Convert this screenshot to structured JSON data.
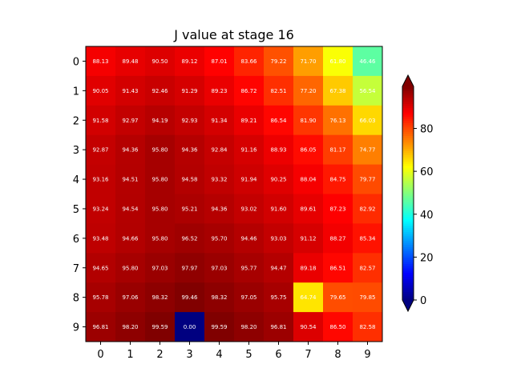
{
  "chart_data": {
    "type": "heatmap",
    "title": "J value at stage 16",
    "xlabel": "",
    "ylabel": "",
    "x_ticks": [
      "0",
      "1",
      "2",
      "3",
      "4",
      "5",
      "6",
      "7",
      "8",
      "9"
    ],
    "y_ticks": [
      "0",
      "1",
      "2",
      "3",
      "4",
      "5",
      "6",
      "7",
      "8",
      "9"
    ],
    "colormap": "jet",
    "vmin": 0,
    "vmax": 99.59,
    "colorbar_ticks": [
      "0",
      "20",
      "40",
      "60",
      "80"
    ],
    "colorbar_extend": "both",
    "values": [
      [
        88.13,
        89.48,
        90.5,
        89.12,
        87.01,
        83.66,
        79.22,
        71.7,
        61.8,
        46.46
      ],
      [
        90.05,
        91.43,
        92.46,
        91.29,
        89.23,
        86.72,
        82.51,
        77.2,
        67.38,
        56.54
      ],
      [
        91.58,
        92.97,
        94.19,
        92.93,
        91.34,
        89.21,
        86.54,
        81.9,
        76.13,
        66.03
      ],
      [
        92.87,
        94.36,
        95.8,
        94.36,
        92.84,
        91.16,
        88.93,
        86.05,
        81.17,
        74.77
      ],
      [
        93.16,
        94.51,
        95.8,
        94.58,
        93.32,
        91.94,
        90.25,
        88.04,
        84.75,
        79.77
      ],
      [
        93.24,
        94.54,
        95.8,
        95.21,
        94.36,
        93.02,
        91.6,
        89.61,
        87.23,
        82.92
      ],
      [
        93.48,
        94.66,
        95.8,
        96.52,
        95.7,
        94.46,
        93.03,
        91.12,
        88.27,
        85.34
      ],
      [
        94.65,
        95.8,
        97.03,
        97.97,
        97.03,
        95.77,
        94.47,
        89.18,
        86.51,
        82.57
      ],
      [
        95.78,
        97.06,
        98.32,
        99.46,
        98.32,
        97.05,
        95.75,
        64.74,
        79.65,
        79.85
      ],
      [
        96.81,
        98.2,
        99.59,
        0.0,
        99.59,
        98.2,
        96.81,
        90.54,
        86.5,
        82.58
      ]
    ],
    "cell_labels": [
      [
        "88.13",
        "89.48",
        "90.50",
        "89.12",
        "87.01",
        "83.66",
        "79.22",
        "71.70",
        "61.80",
        "46.46"
      ],
      [
        "90.05",
        "91.43",
        "92.46",
        "91.29",
        "89.23",
        "86.72",
        "82.51",
        "77.20",
        "67.38",
        "56.54"
      ],
      [
        "91.58",
        "92.97",
        "94.19",
        "92.93",
        "91.34",
        "89.21",
        "86.54",
        "81.90",
        "76.13",
        "66.03"
      ],
      [
        "92.87",
        "94.36",
        "95.80",
        "94.36",
        "92.84",
        "91.16",
        "88.93",
        "86.05",
        "81.17",
        "74.77"
      ],
      [
        "93.16",
        "94.51",
        "95.80",
        "94.58",
        "93.32",
        "91.94",
        "90.25",
        "88.04",
        "84.75",
        "79.77"
      ],
      [
        "93.24",
        "94.54",
        "95.80",
        "95.21",
        "94.36",
        "93.02",
        "91.60",
        "89.61",
        "87.23",
        "82.92"
      ],
      [
        "93.48",
        "94.66",
        "95.80",
        "96.52",
        "95.70",
        "94.46",
        "93.03",
        "91.12",
        "88.27",
        "85.34"
      ],
      [
        "94.65",
        "95.80",
        "97.03",
        "97.97",
        "97.03",
        "95.77",
        "94.47",
        "89.18",
        "86.51",
        "82.57"
      ],
      [
        "95.78",
        "97.06",
        "98.32",
        "99.46",
        "98.32",
        "97.05",
        "95.75",
        "64.74",
        "79.65",
        "79.85"
      ],
      [
        "96.81",
        "98.20",
        "99.59",
        "0.00",
        "99.59",
        "98.20",
        "96.81",
        "90.54",
        "86.50",
        "82.58"
      ]
    ]
  }
}
